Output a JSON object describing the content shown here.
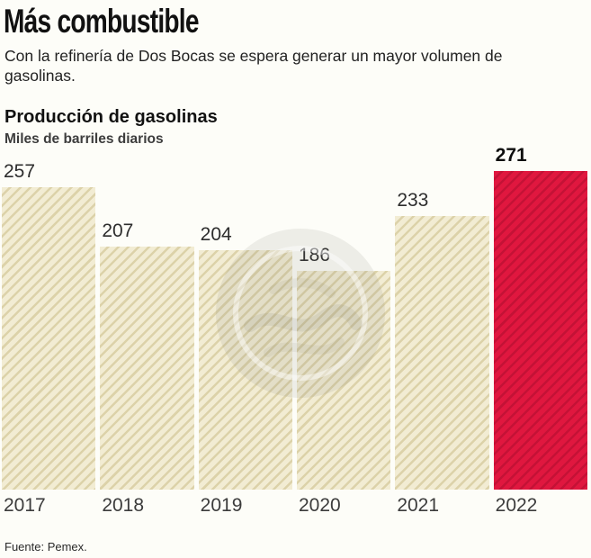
{
  "header": {
    "title": "Más combustible",
    "subtitle": "Con la refinería de Dos Bocas se espera generar un mayor volumen de gasolinas."
  },
  "chart": {
    "title": "Producción de gasolinas",
    "subtitle": "Miles de barriles diarios",
    "source": "Fuente: Pemex."
  },
  "chart_data": {
    "type": "bar",
    "title": "Producción de gasolinas",
    "subtitle": "Miles de barriles diarios",
    "categories": [
      "2017",
      "2018",
      "2019",
      "2020",
      "2021",
      "2022"
    ],
    "values": [
      257,
      207,
      204,
      186,
      233,
      271
    ],
    "highlight_index": 5,
    "ylim": [
      0,
      280
    ],
    "xlabel": "",
    "ylabel": "Miles de barriles diarios",
    "grid": false,
    "legend": false,
    "colors": {
      "bar_fill": "#f2ecd3",
      "bar_hatch": "#dcd2a9",
      "highlight_fill": "#e0173f",
      "highlight_hatch": "#c41236",
      "background": "#fdfdf8"
    },
    "source": "Fuente: Pemex."
  }
}
